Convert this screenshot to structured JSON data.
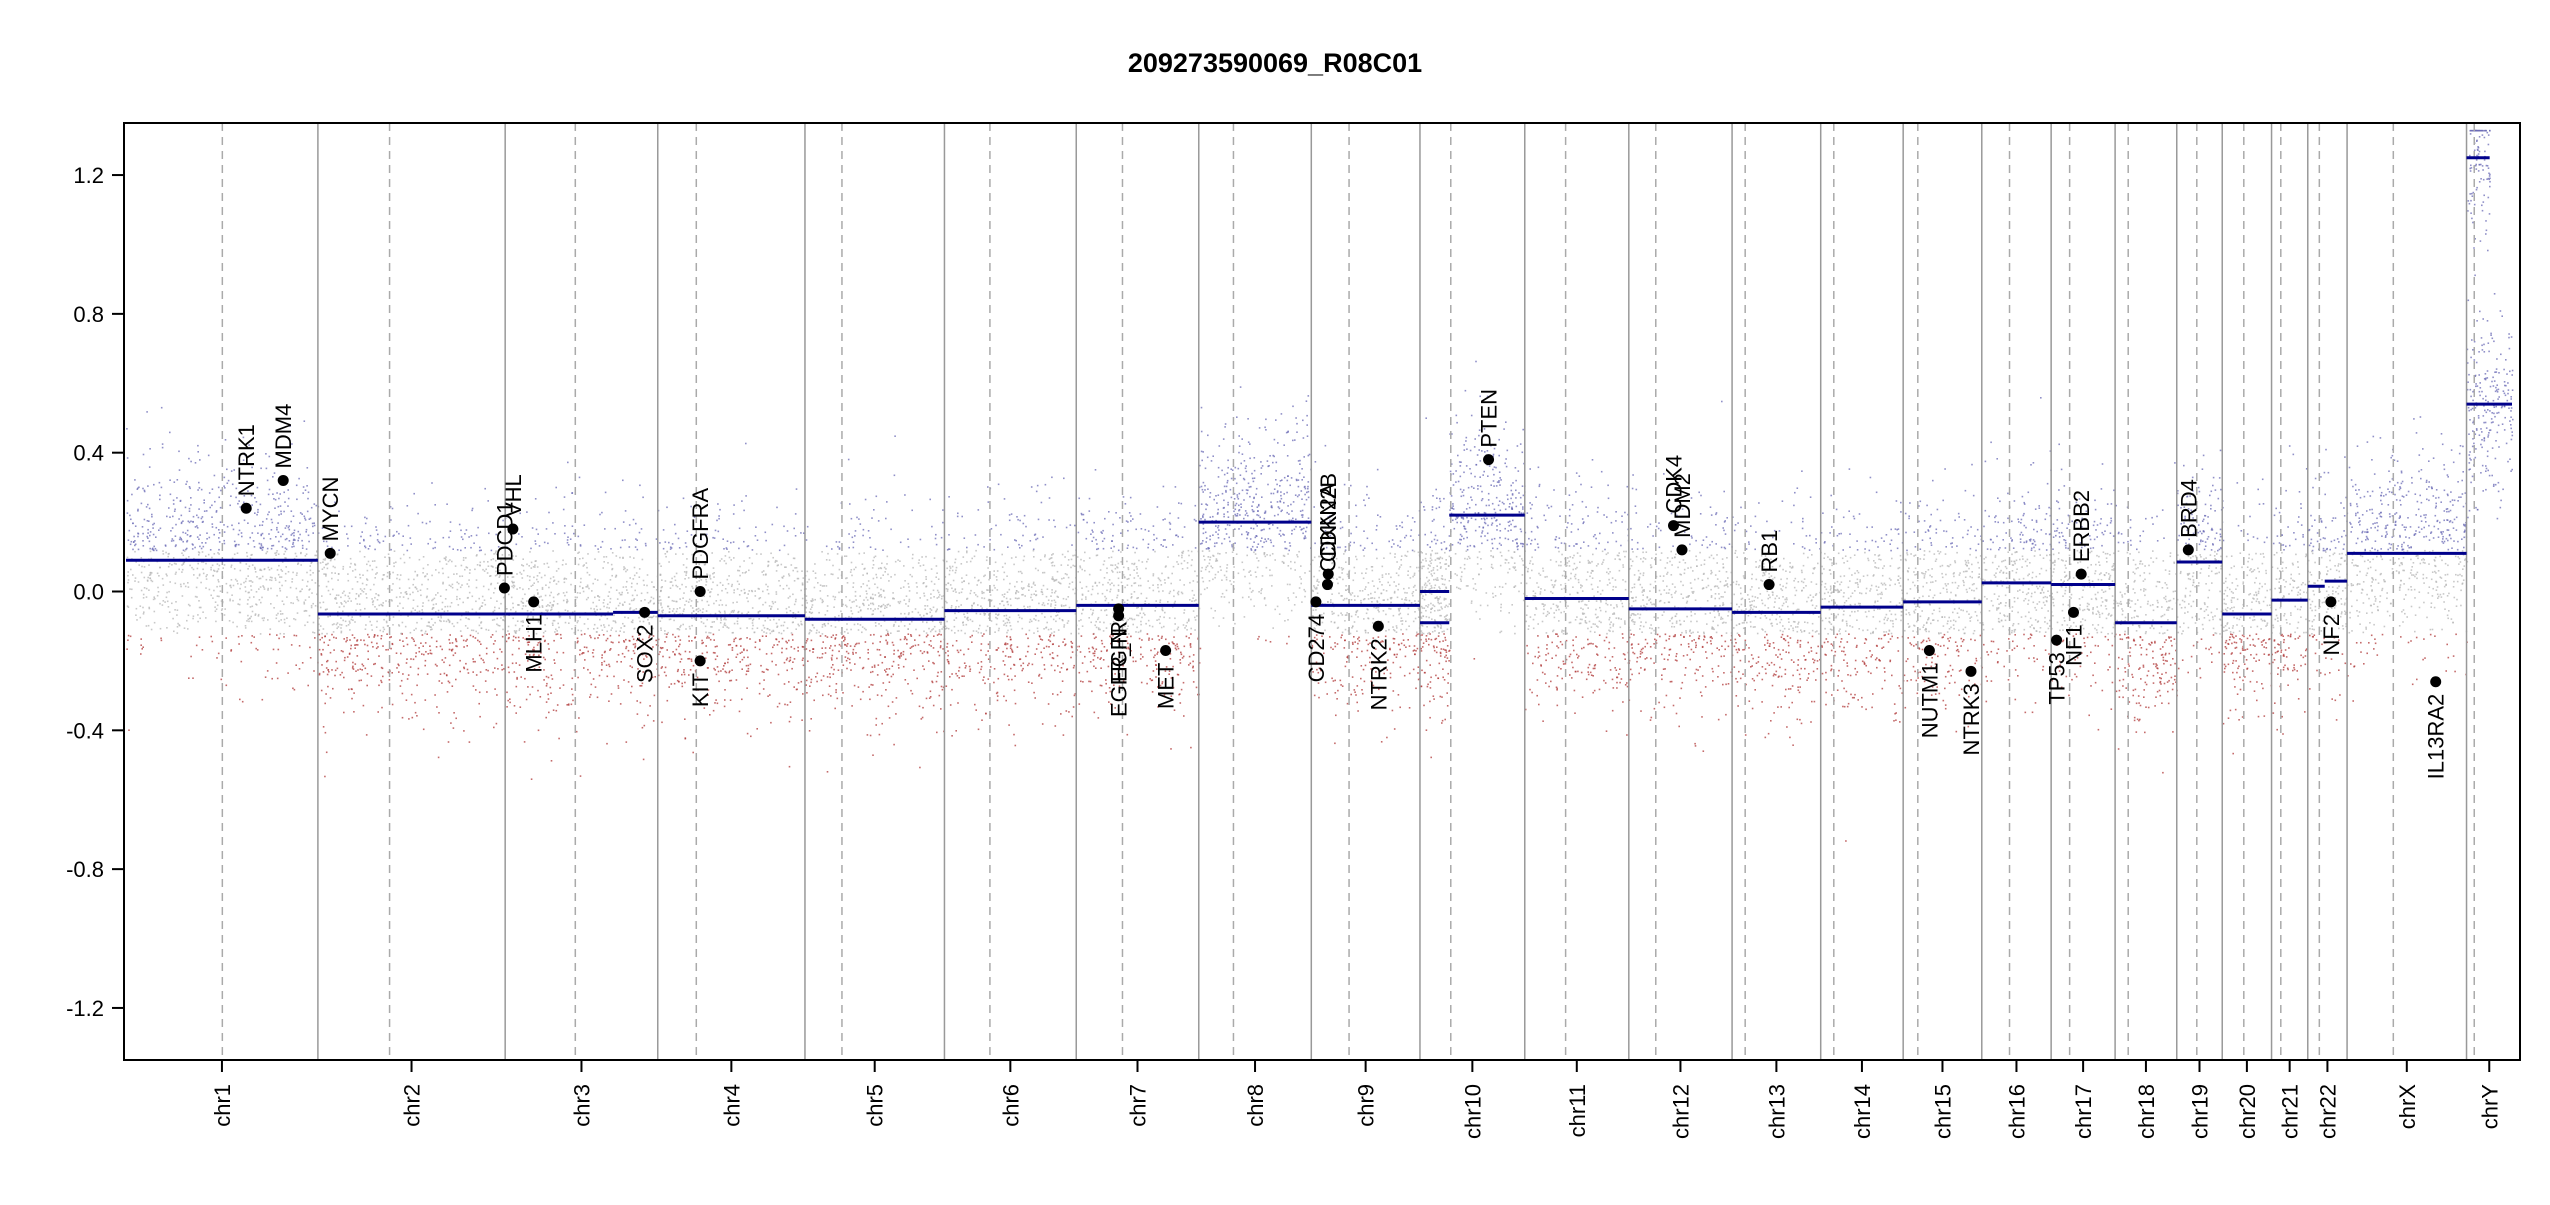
{
  "chart_data": {
    "type": "scatter",
    "title": "209273590069_R08C01",
    "xlabel": "",
    "ylabel": "",
    "ylim": [
      -1.35,
      1.35
    ],
    "yticks": [
      1.2,
      0.8,
      0.4,
      0.0,
      -0.4,
      -0.8,
      -1.2
    ],
    "ytick_labels": [
      "1.2",
      "0.8",
      "0.4",
      "0.0",
      "-0.4",
      "-0.8",
      "-1.2"
    ],
    "grid": false,
    "colors": {
      "segment": "#00008b",
      "gain_probe": "#6b6bb5",
      "neutral_probe": "#b5b5b5",
      "loss_probe": "#b03a3a",
      "chrom_boundary": "#999999",
      "centromere": "#aaaaaa",
      "gene_point": "#000000"
    },
    "chromosomes": [
      {
        "name": "chr1",
        "length": 249,
        "centromere": 125
      },
      {
        "name": "chr2",
        "length": 243,
        "centromere": 93
      },
      {
        "name": "chr3",
        "length": 198,
        "centromere": 91
      },
      {
        "name": "chr4",
        "length": 191,
        "centromere": 50
      },
      {
        "name": "chr5",
        "length": 181,
        "centromere": 48
      },
      {
        "name": "chr6",
        "length": 171,
        "centromere": 59
      },
      {
        "name": "chr7",
        "length": 159,
        "centromere": 60
      },
      {
        "name": "chr8",
        "length": 146,
        "centromere": 45
      },
      {
        "name": "chr9",
        "length": 141,
        "centromere": 49
      },
      {
        "name": "chr10",
        "length": 136,
        "centromere": 40
      },
      {
        "name": "chr11",
        "length": 135,
        "centromere": 53
      },
      {
        "name": "chr12",
        "length": 134,
        "centromere": 35
      },
      {
        "name": "chr13",
        "length": 115,
        "centromere": 17
      },
      {
        "name": "chr14",
        "length": 107,
        "centromere": 17
      },
      {
        "name": "chr15",
        "length": 102,
        "centromere": 19
      },
      {
        "name": "chr16",
        "length": 90,
        "centromere": 36
      },
      {
        "name": "chr17",
        "length": 83,
        "centromere": 24
      },
      {
        "name": "chr18",
        "length": 80,
        "centromere": 17
      },
      {
        "name": "chr19",
        "length": 59,
        "centromere": 26
      },
      {
        "name": "chr20",
        "length": 64,
        "centromere": 28
      },
      {
        "name": "chr21",
        "length": 47,
        "centromere": 12
      },
      {
        "name": "chr22",
        "length": 51,
        "centromere": 15
      },
      {
        "name": "chrX",
        "length": 155,
        "centromere": 60
      },
      {
        "name": "chrY",
        "length": 59,
        "centromere": 10
      }
    ],
    "segments": [
      {
        "chr": "chr1",
        "start": 0,
        "end": 249,
        "value": 0.09
      },
      {
        "chr": "chr2",
        "start": 0,
        "end": 243,
        "value": -0.065
      },
      {
        "chr": "chr3",
        "start": 0,
        "end": 140,
        "value": -0.065
      },
      {
        "chr": "chr3",
        "start": 140,
        "end": 198,
        "value": -0.06
      },
      {
        "chr": "chr4",
        "start": 0,
        "end": 191,
        "value": -0.07
      },
      {
        "chr": "chr5",
        "start": 0,
        "end": 181,
        "value": -0.08
      },
      {
        "chr": "chr6",
        "start": 0,
        "end": 171,
        "value": -0.055
      },
      {
        "chr": "chr7",
        "start": 0,
        "end": 159,
        "value": -0.04
      },
      {
        "chr": "chr8",
        "start": 0,
        "end": 146,
        "value": 0.2
      },
      {
        "chr": "chr9",
        "start": 0,
        "end": 141,
        "value": -0.04
      },
      {
        "chr": "chr10",
        "start": 0,
        "end": 38,
        "value": 0.0
      },
      {
        "chr": "chr10",
        "start": 0,
        "end": 38,
        "value": -0.09
      },
      {
        "chr": "chr10",
        "start": 38,
        "end": 136,
        "value": 0.22
      },
      {
        "chr": "chr11",
        "start": 0,
        "end": 135,
        "value": -0.02
      },
      {
        "chr": "chr12",
        "start": 0,
        "end": 134,
        "value": -0.05
      },
      {
        "chr": "chr13",
        "start": 0,
        "end": 115,
        "value": -0.06
      },
      {
        "chr": "chr14",
        "start": 0,
        "end": 107,
        "value": -0.045
      },
      {
        "chr": "chr15",
        "start": 0,
        "end": 102,
        "value": -0.03
      },
      {
        "chr": "chr16",
        "start": 0,
        "end": 90,
        "value": 0.025
      },
      {
        "chr": "chr17",
        "start": 0,
        "end": 83,
        "value": 0.02
      },
      {
        "chr": "chr18",
        "start": 0,
        "end": 80,
        "value": -0.09
      },
      {
        "chr": "chr19",
        "start": 0,
        "end": 59,
        "value": 0.085
      },
      {
        "chr": "chr20",
        "start": 0,
        "end": 64,
        "value": -0.065
      },
      {
        "chr": "chr21",
        "start": 0,
        "end": 47,
        "value": -0.025
      },
      {
        "chr": "chr22",
        "start": 0,
        "end": 22,
        "value": 0.015
      },
      {
        "chr": "chr22",
        "start": 22,
        "end": 51,
        "value": 0.03
      },
      {
        "chr": "chrX",
        "start": 0,
        "end": 155,
        "value": 0.11
      },
      {
        "chr": "chrY",
        "start": 0,
        "end": 59,
        "value": 0.54
      },
      {
        "chr": "chrY",
        "start": 0,
        "end": 30,
        "value": 1.25
      }
    ],
    "genes": [
      {
        "name": "NTRK1",
        "chr": "chr1",
        "pos": 156,
        "value": 0.24
      },
      {
        "name": "MDM4",
        "chr": "chr1",
        "pos": 204,
        "value": 0.32
      },
      {
        "name": "MYCN",
        "chr": "chr2",
        "pos": 16,
        "value": 0.11
      },
      {
        "name": "PDCD1",
        "chr": "chr2",
        "pos": 242,
        "value": 0.01
      },
      {
        "name": "VHL",
        "chr": "chr3",
        "pos": 10,
        "value": 0.18
      },
      {
        "name": "MLH1",
        "chr": "chr3",
        "pos": 37,
        "value": -0.03
      },
      {
        "name": "SOX2",
        "chr": "chr3",
        "pos": 181,
        "value": -0.06
      },
      {
        "name": "PDGFRA",
        "chr": "chr4",
        "pos": 55,
        "value": 0.0
      },
      {
        "name": "KIT",
        "chr": "chr4",
        "pos": 55,
        "value": -0.2
      },
      {
        "name": "EGFR",
        "chr": "chr7",
        "pos": 55,
        "value": -0.05
      },
      {
        "name": "EGFR_N",
        "chr": "chr7",
        "pos": 55,
        "value": -0.07
      },
      {
        "name": "MET",
        "chr": "chr7",
        "pos": 116,
        "value": -0.17
      },
      {
        "name": "CD274",
        "chr": "chr9",
        "pos": 6,
        "value": -0.03
      },
      {
        "name": "CDKN2A",
        "chr": "chr9",
        "pos": 21,
        "value": 0.02
      },
      {
        "name": "CDKN2B",
        "chr": "chr9",
        "pos": 22,
        "value": 0.05
      },
      {
        "name": "NTRK2",
        "chr": "chr9",
        "pos": 87,
        "value": -0.1
      },
      {
        "name": "PTEN",
        "chr": "chr10",
        "pos": 89,
        "value": 0.38
      },
      {
        "name": "CDK4",
        "chr": "chr12",
        "pos": 58,
        "value": 0.19
      },
      {
        "name": "MDM2",
        "chr": "chr12",
        "pos": 69,
        "value": 0.12
      },
      {
        "name": "RB1",
        "chr": "chr13",
        "pos": 48,
        "value": 0.02
      },
      {
        "name": "NUTM1",
        "chr": "chr15",
        "pos": 34,
        "value": -0.17
      },
      {
        "name": "NTRK3",
        "chr": "chr15",
        "pos": 88,
        "value": -0.23
      },
      {
        "name": "TP53",
        "chr": "chr17",
        "pos": 7,
        "value": -0.14
      },
      {
        "name": "NF1",
        "chr": "chr17",
        "pos": 29,
        "value": -0.06
      },
      {
        "name": "ERBB2",
        "chr": "chr17",
        "pos": 39,
        "value": 0.05
      },
      {
        "name": "BRD4",
        "chr": "chr19",
        "pos": 15,
        "value": 0.12
      },
      {
        "name": "NF2",
        "chr": "chr22",
        "pos": 30,
        "value": -0.03
      },
      {
        "name": "IL13RA2",
        "chrX": true,
        "chr": "chrX",
        "pos": 115,
        "value": -0.26
      }
    ]
  }
}
